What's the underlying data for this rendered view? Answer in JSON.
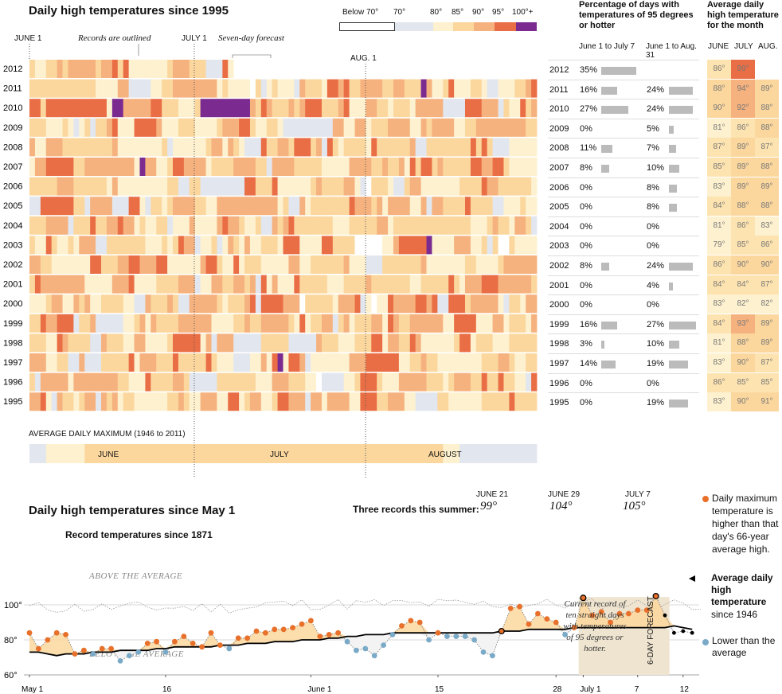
{
  "heatmap": {
    "title": "Daily high temperatures since 1995",
    "legend": {
      "labels": [
        "Below 70°",
        "70°",
        "80°",
        "85°",
        "90°",
        "95°",
        "100°+"
      ],
      "colors": [
        "#ffffff",
        "#e2e6ee",
        "#fdf1cf",
        "#fbd79e",
        "#f6b27e",
        "#ea6e45",
        "#7b2b90"
      ]
    },
    "month_labels": [
      "JUNE 1",
      "JULY 1",
      "AUG. 1"
    ],
    "annotations": {
      "records": "Records are outlined",
      "forecast": "Seven-day forecast"
    },
    "years": [
      "2012",
      "2011",
      "2010",
      "2009",
      "2008",
      "2007",
      "2006",
      "2005",
      "2004",
      "2003",
      "2002",
      "2001",
      "2000",
      "1999",
      "1998",
      "1997",
      "1996",
      "1995"
    ],
    "avg_label": "AVERAGE DAILY MAXIMUM",
    "avg_range": "(1946 to 2011)",
    "avg_months": [
      "JUNE",
      "JULY",
      "AUGUST"
    ]
  },
  "percent_table": {
    "header": "Percentage of days with temperatures of 95 degrees or hotter",
    "col1": "June 1 to July 7",
    "col2": "June 1 to Aug. 31",
    "rows": [
      {
        "year": "2012",
        "a": "35%",
        "av": 35,
        "b": "",
        "bv": null
      },
      {
        "year": "2011",
        "a": "16%",
        "av": 16,
        "b": "24%",
        "bv": 24
      },
      {
        "year": "2010",
        "a": "27%",
        "av": 27,
        "b": "24%",
        "bv": 24
      },
      {
        "year": "2009",
        "a": "0%",
        "av": 0,
        "b": "5%",
        "bv": 5
      },
      {
        "year": "2008",
        "a": "11%",
        "av": 11,
        "b": "7%",
        "bv": 7
      },
      {
        "year": "2007",
        "a": "8%",
        "av": 8,
        "b": "10%",
        "bv": 10
      },
      {
        "year": "2006",
        "a": "0%",
        "av": 0,
        "b": "8%",
        "bv": 8
      },
      {
        "year": "2005",
        "a": "0%",
        "av": 0,
        "b": "8%",
        "bv": 8
      },
      {
        "year": "2004",
        "a": "0%",
        "av": 0,
        "b": "0%",
        "bv": 0
      },
      {
        "year": "2003",
        "a": "0%",
        "av": 0,
        "b": "0%",
        "bv": 0
      },
      {
        "year": "2002",
        "a": "8%",
        "av": 8,
        "b": "24%",
        "bv": 24
      },
      {
        "year": "2001",
        "a": "0%",
        "av": 0,
        "b": "4%",
        "bv": 4
      },
      {
        "year": "2000",
        "a": "0%",
        "av": 0,
        "b": "0%",
        "bv": 0
      },
      {
        "year": "1999",
        "a": "16%",
        "av": 16,
        "b": "27%",
        "bv": 27
      },
      {
        "year": "1998",
        "a": "3%",
        "av": 3,
        "b": "10%",
        "bv": 10
      },
      {
        "year": "1997",
        "a": "14%",
        "av": 14,
        "b": "19%",
        "bv": 19
      },
      {
        "year": "1996",
        "a": "0%",
        "av": 0,
        "b": "0%",
        "bv": 0
      },
      {
        "year": "1995",
        "a": "0%",
        "av": 0,
        "b": "19%",
        "bv": 19
      }
    ]
  },
  "monthly_avg": {
    "header": "Average daily high temperature for the month",
    "cols": [
      "JUNE",
      "JULY",
      "AUG."
    ],
    "rows": [
      [
        "86°",
        "99°",
        ""
      ],
      [
        "88°",
        "94°",
        "89°"
      ],
      [
        "90°",
        "92°",
        "88°"
      ],
      [
        "81°",
        "86°",
        "88°"
      ],
      [
        "87°",
        "89°",
        "87°"
      ],
      [
        "85°",
        "89°",
        "88°"
      ],
      [
        "83°",
        "89°",
        "89°"
      ],
      [
        "84°",
        "88°",
        "88°"
      ],
      [
        "81°",
        "86°",
        "83°"
      ],
      [
        "79°",
        "85°",
        "86°"
      ],
      [
        "86°",
        "90°",
        "90°"
      ],
      [
        "84°",
        "84°",
        "87°"
      ],
      [
        "83°",
        "82°",
        "82°"
      ],
      [
        "84°",
        "93°",
        "89°"
      ],
      [
        "81°",
        "88°",
        "89°"
      ],
      [
        "83°",
        "90°",
        "87°"
      ],
      [
        "86°",
        "85°",
        "85°"
      ],
      [
        "83°",
        "90°",
        "91°"
      ]
    ]
  },
  "line_chart": {
    "title": "Daily high temperatures since May 1",
    "records_text": "Three records this summer:",
    "records": [
      {
        "date": "JUNE 21",
        "temp": "99°"
      },
      {
        "date": "JUNE 29",
        "temp": "104°"
      },
      {
        "date": "JULY 7",
        "temp": "105°"
      }
    ],
    "record_line_label": "Record temperatures since 1871",
    "above_label": "ABOVE THE AVERAGE",
    "below_label": "BELOW THE AVERAGE",
    "streak_note": "Current record of ten straight days with temperatures of 95 degrees or hotter.",
    "forecast_label": "6-DAY FORECAST",
    "x_ticks": [
      "May 1",
      "16",
      "June 1",
      "15",
      "28",
      "July 1",
      "7",
      "12"
    ],
    "y_ticks": [
      "100°",
      "80°",
      "60°"
    ],
    "legend_above": "Daily maximum temperature is higher than that day's 66-year average high.",
    "legend_avg_bold": "Average daily high temperature",
    "legend_avg_rest": "since 1946",
    "legend_below": "Lower than the average",
    "colors": {
      "above": "#e8702a",
      "below": "#7aaac8",
      "fill": "#fbd79e",
      "avg": "#000000"
    }
  },
  "chart_data": [
    {
      "type": "heatmap",
      "title": "Daily high temperatures since 1995",
      "rows": [
        "2012",
        "2011",
        "2010",
        "2009",
        "2008",
        "2007",
        "2006",
        "2005",
        "2004",
        "2003",
        "2002",
        "2001",
        "2000",
        "1999",
        "1998",
        "1997",
        "1996",
        "1995"
      ],
      "x_range": [
        "June 1",
        "Aug. 31"
      ],
      "bins": [
        "Below 70°",
        "70°",
        "80°",
        "85°",
        "90°",
        "95°",
        "100°+"
      ]
    },
    {
      "type": "bar",
      "title": "Percentage of days with temperatures of 95 degrees or hotter",
      "categories": [
        "2012",
        "2011",
        "2010",
        "2009",
        "2008",
        "2007",
        "2006",
        "2005",
        "2004",
        "2003",
        "2002",
        "2001",
        "2000",
        "1999",
        "1998",
        "1997",
        "1996",
        "1995"
      ],
      "series": [
        {
          "name": "June 1 to July 7",
          "values": [
            35,
            16,
            27,
            0,
            11,
            8,
            0,
            0,
            0,
            0,
            8,
            0,
            0,
            16,
            3,
            14,
            0,
            0
          ]
        },
        {
          "name": "June 1 to Aug. 31",
          "values": [
            null,
            24,
            24,
            5,
            7,
            10,
            8,
            8,
            0,
            0,
            24,
            4,
            0,
            27,
            10,
            19,
            0,
            19
          ]
        }
      ]
    },
    {
      "type": "line",
      "title": "Daily high temperatures since May 1",
      "ylim": [
        60,
        105
      ],
      "x_range": [
        "May 1",
        "July 13"
      ],
      "series": [
        {
          "name": "Average daily high temperature",
          "values": [
            73,
            73,
            72,
            71,
            72,
            72,
            72,
            73,
            73,
            73,
            74,
            74,
            74,
            74,
            75,
            75,
            76,
            76,
            76,
            76,
            76,
            77,
            77,
            77,
            78,
            78,
            78,
            79,
            79,
            79,
            80,
            80,
            80,
            81,
            81,
            82,
            82,
            83,
            83,
            83,
            84,
            84,
            84,
            84,
            84,
            84,
            84,
            84,
            84,
            84,
            84,
            84,
            85,
            85,
            85,
            86,
            86,
            86,
            86,
            86,
            87,
            87,
            87,
            87,
            87,
            87,
            87,
            87,
            87,
            87,
            87,
            88,
            87,
            86
          ]
        },
        {
          "name": "Daily maximum temperature",
          "values": [
            84,
            75,
            80,
            84,
            83,
            72,
            74,
            72,
            75,
            75,
            68,
            71,
            73,
            78,
            79,
            73,
            79,
            82,
            78,
            76,
            84,
            77,
            75,
            81,
            81,
            85,
            84,
            86,
            86,
            87,
            89,
            91,
            82,
            83,
            84,
            79,
            74,
            75,
            71,
            77,
            83,
            88,
            91,
            90,
            80,
            84,
            82,
            82,
            82,
            80,
            73,
            71,
            85,
            98,
            99,
            89,
            95,
            92,
            90,
            83,
            87,
            104,
            94,
            96,
            90,
            95,
            95,
            97,
            97,
            105,
            94,
            84,
            85,
            84
          ]
        }
      ]
    }
  ]
}
